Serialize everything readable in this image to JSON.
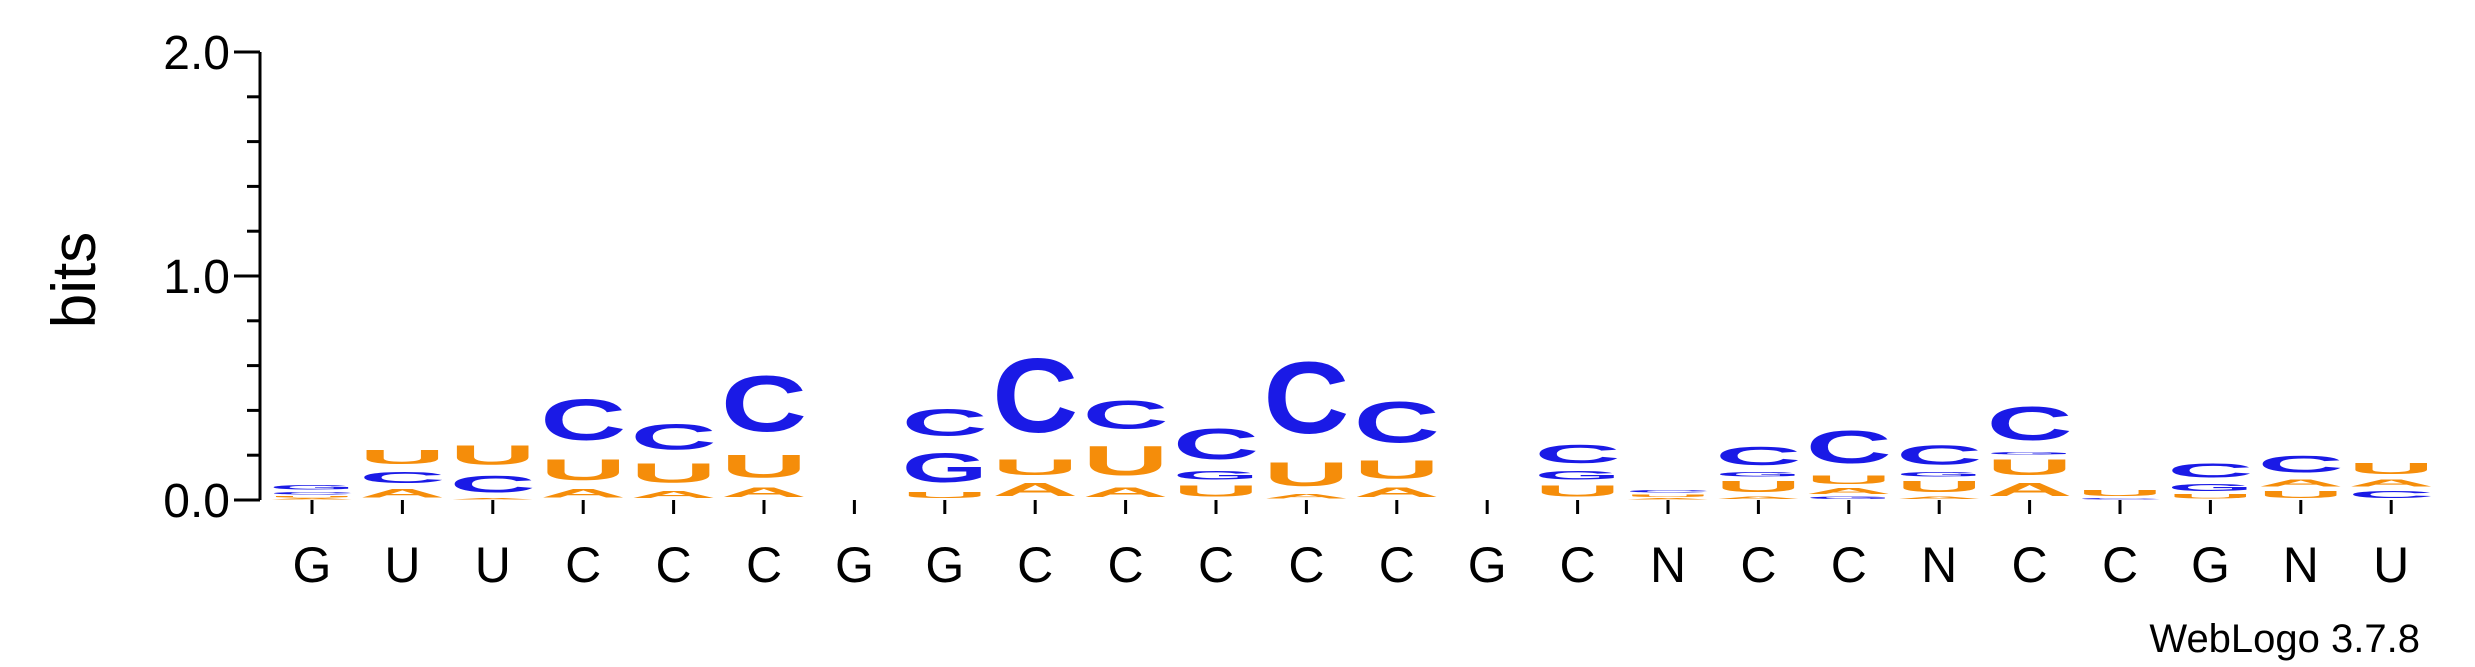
{
  "chart_data": {
    "type": "sequence-logo",
    "ylabel": "bits",
    "ylim": [
      0,
      2.0
    ],
    "yticks": [
      "0.0",
      "1.0",
      "2.0"
    ],
    "credit": "WebLogo 3.7.8",
    "colors": {
      "A": "#f58d0a",
      "U": "#f58d0a",
      "C": "#1a1ae6",
      "G": "#1a1ae6"
    },
    "positions": [
      {
        "label": "G",
        "stack": [
          [
            "A",
            0.01
          ],
          [
            "U",
            0.01
          ],
          [
            "C",
            0.02
          ],
          [
            "G",
            0.03
          ]
        ]
      },
      {
        "label": "U",
        "stack": [
          [
            "A",
            0.06
          ],
          [
            "C",
            0.08
          ],
          [
            "U",
            0.1
          ]
        ]
      },
      {
        "label": "U",
        "stack": [
          [
            "A",
            0.01
          ],
          [
            "C",
            0.12
          ],
          [
            "U",
            0.14
          ]
        ]
      },
      {
        "label": "C",
        "stack": [
          [
            "A",
            0.06
          ],
          [
            "U",
            0.15
          ],
          [
            "C",
            0.29
          ]
        ]
      },
      {
        "label": "C",
        "stack": [
          [
            "A",
            0.05
          ],
          [
            "U",
            0.14
          ],
          [
            "C",
            0.18
          ]
        ]
      },
      {
        "label": "C",
        "stack": [
          [
            "A",
            0.07
          ],
          [
            "U",
            0.16
          ],
          [
            "C",
            0.4
          ]
        ]
      },
      {
        "label": "G",
        "stack": []
      },
      {
        "label": "G",
        "stack": [
          [
            "U",
            0.04
          ],
          [
            "G",
            0.21
          ],
          [
            "C",
            0.19
          ]
        ]
      },
      {
        "label": "C",
        "stack": [
          [
            "A",
            0.09
          ],
          [
            "U",
            0.11
          ],
          [
            "C",
            0.53
          ]
        ]
      },
      {
        "label": "C",
        "stack": [
          [
            "A",
            0.07
          ],
          [
            "U",
            0.21
          ],
          [
            "C",
            0.2
          ]
        ]
      },
      {
        "label": "C",
        "stack": [
          [
            "U",
            0.08
          ],
          [
            "G",
            0.06
          ],
          [
            "C",
            0.22
          ]
        ]
      },
      {
        "label": "C",
        "stack": [
          [
            "A",
            0.03
          ],
          [
            "U",
            0.17
          ],
          [
            "C",
            0.51
          ]
        ]
      },
      {
        "label": "C",
        "stack": [
          [
            "A",
            0.07
          ],
          [
            "U",
            0.13
          ],
          [
            "C",
            0.29
          ]
        ]
      },
      {
        "label": "G",
        "stack": []
      },
      {
        "label": "C",
        "stack": [
          [
            "U",
            0.08
          ],
          [
            "G",
            0.06
          ],
          [
            "C",
            0.13
          ]
        ]
      },
      {
        "label": "N",
        "stack": [
          [
            "A",
            0.01
          ],
          [
            "U",
            0.02
          ],
          [
            "C",
            0.02
          ]
        ]
      },
      {
        "label": "C",
        "stack": [
          [
            "A",
            0.02
          ],
          [
            "U",
            0.08
          ],
          [
            "G",
            0.03
          ],
          [
            "C",
            0.13
          ]
        ]
      },
      {
        "label": "C",
        "stack": [
          [
            "G",
            0.02
          ],
          [
            "A",
            0.04
          ],
          [
            "U",
            0.06
          ],
          [
            "C",
            0.23
          ]
        ]
      },
      {
        "label": "N",
        "stack": [
          [
            "A",
            0.02
          ],
          [
            "U",
            0.08
          ],
          [
            "G",
            0.03
          ],
          [
            "C",
            0.14
          ]
        ]
      },
      {
        "label": "C",
        "stack": [
          [
            "A",
            0.09
          ],
          [
            "U",
            0.11
          ],
          [
            "G",
            0.02
          ],
          [
            "C",
            0.24
          ]
        ]
      },
      {
        "label": "C",
        "stack": [
          [
            "C",
            0.01
          ],
          [
            "U",
            0.04
          ]
        ]
      },
      {
        "label": "G",
        "stack": [
          [
            "U",
            0.03
          ],
          [
            "G",
            0.05
          ],
          [
            "C",
            0.1
          ]
        ]
      },
      {
        "label": "N",
        "stack": [
          [
            "U",
            0.05
          ],
          [
            "A",
            0.05
          ],
          [
            "C",
            0.12
          ]
        ]
      },
      {
        "label": "U",
        "stack": [
          [
            "C",
            0.05
          ],
          [
            "A",
            0.05
          ],
          [
            "U",
            0.08
          ]
        ]
      }
    ]
  }
}
